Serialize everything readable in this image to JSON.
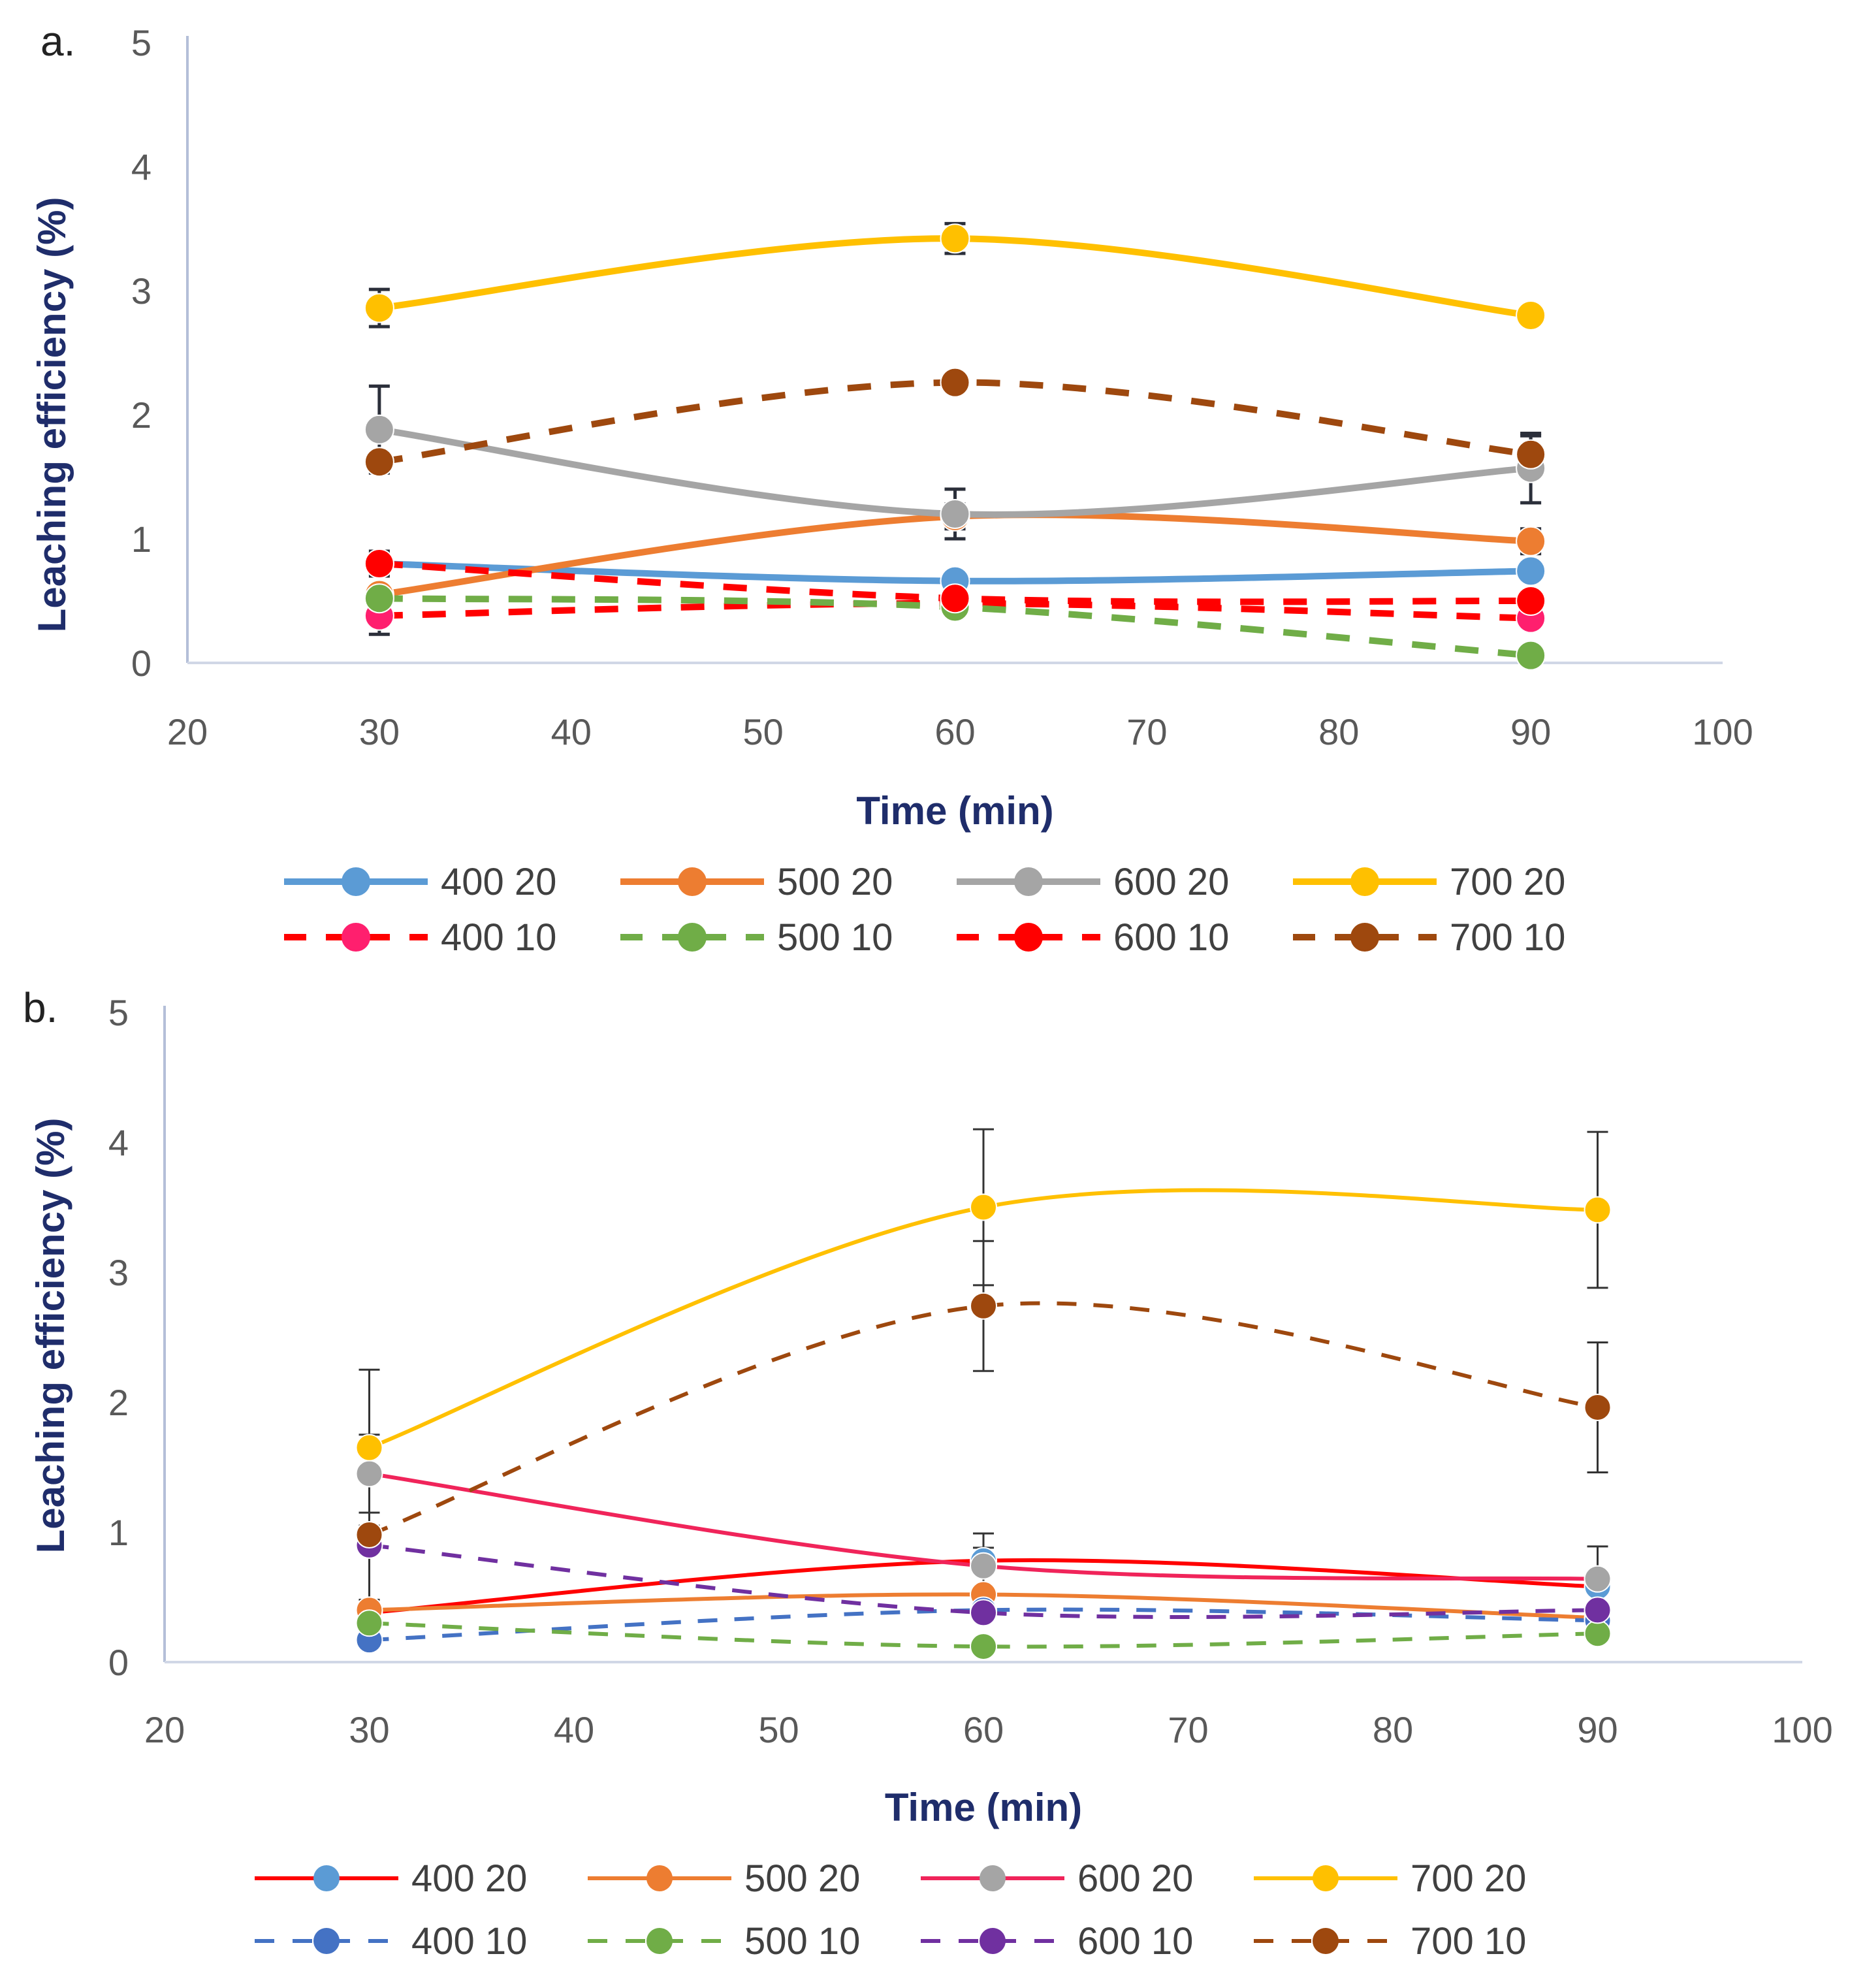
{
  "chart_data": [
    {
      "type": "line",
      "panel_label": "a.",
      "xlabel": "Time (min)",
      "ylabel": "Leaching efficiency (%)",
      "xlim": [
        20,
        100
      ],
      "ylim": [
        0,
        5
      ],
      "xticks": [
        "20",
        "30",
        "40",
        "50",
        "60",
        "70",
        "80",
        "90",
        "100"
      ],
      "yticks": [
        "0",
        "1",
        "2",
        "3",
        "4",
        "5"
      ],
      "x": [
        30,
        60,
        90
      ],
      "series": [
        {
          "name": "400 20",
          "values": [
            0.8,
            0.66,
            0.74
          ],
          "errors": [
            0.1,
            0.05,
            0.05
          ],
          "line_color": "#5b9bd5",
          "marker_color": "#5b9bd5",
          "dash": false
        },
        {
          "name": "500 20",
          "values": [
            0.55,
            1.18,
            0.98
          ],
          "errors": [
            0.05,
            0.1,
            0.1
          ],
          "line_color": "#ed7d31",
          "marker_color": "#ed7d31",
          "dash": false
        },
        {
          "name": "600 20",
          "values": [
            1.88,
            1.2,
            1.57
          ],
          "errors": [
            0.35,
            0.2,
            0.28
          ],
          "line_color": "#a5a5a5",
          "marker_color": "#a5a5a5",
          "dash": false
        },
        {
          "name": "700 20",
          "values": [
            2.86,
            3.42,
            2.8
          ],
          "errors": [
            0.15,
            0.12,
            0.05
          ],
          "line_color": "#ffc000",
          "marker_color": "#ffc000",
          "dash": false
        },
        {
          "name": "400 10",
          "values": [
            0.38,
            0.48,
            0.36
          ],
          "errors": [
            0.15,
            0.05,
            0.05
          ],
          "line_color": "#ff0000",
          "marker_color": "#ff1f6e",
          "dash": true
        },
        {
          "name": "500 10",
          "values": [
            0.52,
            0.45,
            0.06
          ],
          "errors": [
            0.05,
            0.05,
            0.02
          ],
          "line_color": "#70ad47",
          "marker_color": "#70ad47",
          "dash": true
        },
        {
          "name": "600 10",
          "values": [
            0.8,
            0.52,
            0.5
          ],
          "errors": [
            0.05,
            0.05,
            0.05
          ],
          "line_color": "#ff0000",
          "marker_color": "#ff0000",
          "dash": true
        },
        {
          "name": "700 10",
          "values": [
            1.62,
            2.26,
            1.68
          ],
          "errors": [
            0.05,
            0.05,
            0.15
          ],
          "line_color": "#9e480e",
          "marker_color": "#9e480e",
          "dash": true
        }
      ]
    },
    {
      "type": "line",
      "panel_label": "b.",
      "xlabel": "Time (min)",
      "ylabel": "Leaching efficiency (%)",
      "xlim": [
        20,
        100
      ],
      "ylim": [
        0,
        5
      ],
      "xticks": [
        "20",
        "30",
        "40",
        "50",
        "60",
        "70",
        "80",
        "90",
        "100"
      ],
      "yticks": [
        "0",
        "1",
        "2",
        "3",
        "4",
        "5"
      ],
      "x": [
        30,
        60,
        90
      ],
      "series": [
        {
          "name": "400 20",
          "values": [
            0.38,
            0.78,
            0.58
          ],
          "errors": [
            0.05,
            0.1,
            0.05
          ],
          "line_color": "#ff0000",
          "marker_color": "#5b9bd5",
          "dash": false
        },
        {
          "name": "500 20",
          "values": [
            0.4,
            0.52,
            0.34
          ],
          "errors": [
            0.05,
            0.05,
            0.05
          ],
          "line_color": "#ed7d31",
          "marker_color": "#ed7d31",
          "dash": false
        },
        {
          "name": "600 20",
          "values": [
            1.45,
            0.74,
            0.64
          ],
          "errors": [
            0.3,
            0.25,
            0.25
          ],
          "line_color": "#f0245a",
          "marker_color": "#a5a5a5",
          "dash": false
        },
        {
          "name": "700 20",
          "values": [
            1.65,
            3.5,
            3.48
          ],
          "errors": [
            0.6,
            0.6,
            0.6
          ],
          "line_color": "#ffc000",
          "marker_color": "#ffc000",
          "dash": false
        },
        {
          "name": "400 10",
          "values": [
            0.17,
            0.4,
            0.32
          ],
          "errors": [
            0.05,
            0.05,
            0.05
          ],
          "line_color": "#4472c4",
          "marker_color": "#4472c4",
          "dash": true
        },
        {
          "name": "500 10",
          "values": [
            0.3,
            0.12,
            0.22
          ],
          "errors": [
            0.05,
            0.05,
            0.05
          ],
          "line_color": "#70ad47",
          "marker_color": "#70ad47",
          "dash": true
        },
        {
          "name": "600 10",
          "values": [
            0.9,
            0.38,
            0.4
          ],
          "errors": [
            0.05,
            0.05,
            0.05
          ],
          "line_color": "#7030a0",
          "marker_color": "#7030a0",
          "dash": true
        },
        {
          "name": "700 10",
          "values": [
            0.98,
            2.74,
            1.96
          ],
          "errors": [
            0.5,
            0.5,
            0.5
          ],
          "line_color": "#9e480e",
          "marker_color": "#9e480e",
          "dash": true
        }
      ]
    }
  ]
}
